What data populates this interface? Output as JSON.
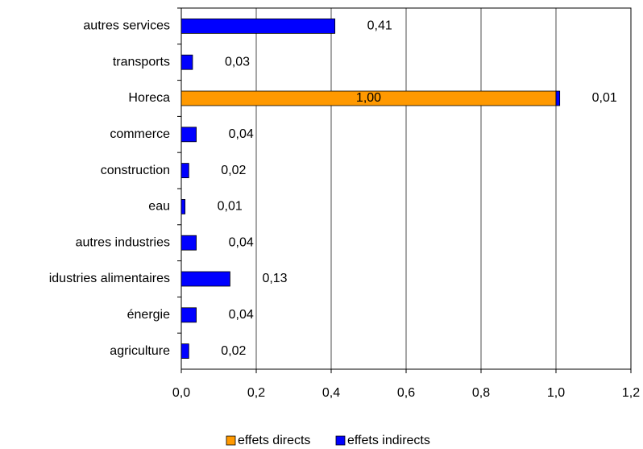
{
  "chart_data": {
    "type": "stacked_barh",
    "categories": [
      "autres services",
      "transports",
      "Horeca",
      "commerce",
      "construction",
      "eau",
      "autres industries",
      "idustries alimentaires",
      "énergie",
      "agriculture"
    ],
    "series": [
      {
        "name": "effets directs",
        "color": "#ff9900",
        "values": [
          null,
          null,
          1.0,
          null,
          null,
          null,
          null,
          null,
          null,
          null
        ],
        "value_labels": [
          null,
          null,
          "1,00",
          null,
          null,
          null,
          null,
          null,
          null,
          null
        ]
      },
      {
        "name": "effets indirects",
        "color": "#0000ff",
        "values": [
          0.41,
          0.03,
          0.01,
          0.04,
          0.02,
          0.01,
          0.04,
          0.13,
          0.04,
          0.02
        ],
        "value_labels": [
          "0,41",
          "0,03",
          "0,01",
          "0,04",
          "0,02",
          "0,01",
          "0,04",
          "0,13",
          "0,04",
          "0,02"
        ]
      }
    ],
    "xlim": [
      0,
      1.2
    ],
    "xticks": [
      {
        "value": 0,
        "label": "0,0"
      },
      {
        "value": 0.2,
        "label": "0,2"
      },
      {
        "value": 0.4,
        "label": "0,4"
      },
      {
        "value": 0.6,
        "label": "0,6"
      },
      {
        "value": 0.8,
        "label": "0,8"
      },
      {
        "value": 1.0,
        "label": "1,0"
      },
      {
        "value": 1.2,
        "label": "1,2"
      }
    ],
    "grid": true,
    "legend": "bottom"
  }
}
